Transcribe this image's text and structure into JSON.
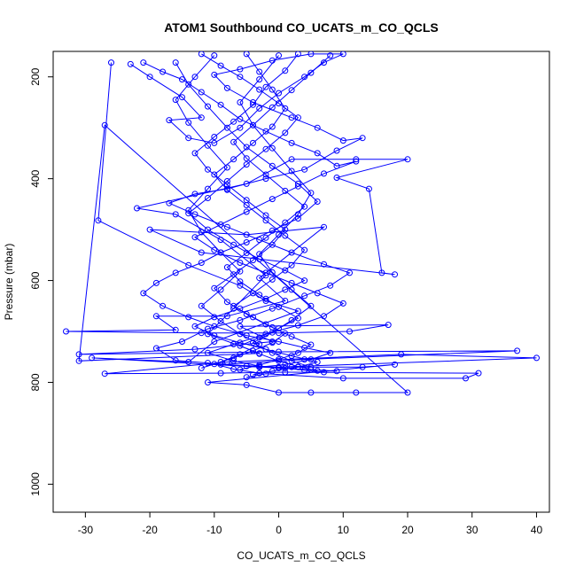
{
  "chart_data": {
    "type": "line",
    "title": "ATOM1 Southbound CO_UCATS_m_CO_QCLS",
    "xlabel": "CO_UCATS_m_CO_QCLS",
    "ylabel": "Pressure (mbar)",
    "xlim": [
      -35,
      42
    ],
    "ylim": [
      1055,
      150
    ],
    "y_reversed": true,
    "xticks": [
      -30,
      -20,
      -10,
      0,
      10,
      20,
      30,
      40
    ],
    "xtick_labels": [
      "-30",
      "-20",
      "-10",
      "0",
      "10",
      "20",
      "30",
      "40"
    ],
    "yticks": [
      200,
      400,
      600,
      800,
      1000
    ],
    "ytick_labels": [
      "200",
      "400",
      "600",
      "800",
      "1000"
    ],
    "grid": false,
    "legend": "none",
    "color": "#0000ff",
    "marker": "open-circle",
    "series": [
      {
        "points": [
          [
            -26,
            172
          ],
          [
            -28,
            482
          ],
          [
            -14,
            570
          ],
          [
            -6,
            610
          ],
          [
            -2,
            640
          ],
          [
            3,
            660
          ],
          [
            -10,
            720
          ],
          [
            -14,
            760
          ],
          [
            -29,
            752
          ],
          [
            -3,
            770
          ],
          [
            2,
            770
          ],
          [
            13,
            770
          ],
          [
            18,
            765
          ],
          [
            -11,
            800
          ],
          [
            -5,
            805
          ],
          [
            0,
            820
          ],
          [
            5,
            820
          ],
          [
            12,
            820
          ],
          [
            20,
            820
          ],
          [
            -27,
            295
          ],
          [
            -31,
            758
          ],
          [
            -3,
            743
          ],
          [
            -11,
            705
          ],
          [
            -7,
            655
          ],
          [
            -2,
            590
          ],
          [
            -9,
            520
          ],
          [
            -16,
            470
          ],
          [
            -22,
            458
          ],
          [
            -5,
            410
          ],
          [
            2,
            362
          ],
          [
            12,
            362
          ],
          [
            20,
            362
          ],
          [
            9,
            398
          ],
          [
            14,
            420
          ],
          [
            16,
            585
          ],
          [
            18,
            588
          ],
          [
            -12,
            545
          ],
          [
            -20,
            500
          ],
          [
            -5,
            510
          ],
          [
            7,
            495
          ],
          [
            -3,
            595
          ],
          [
            1,
            640
          ],
          [
            -8,
            670
          ],
          [
            -19,
            670
          ],
          [
            -16,
            697
          ],
          [
            -33,
            700
          ],
          [
            -12,
            703
          ],
          [
            0,
            703
          ],
          [
            11,
            700
          ],
          [
            17,
            687
          ],
          [
            -6,
            690
          ],
          [
            -1,
            720
          ],
          [
            -13,
            735
          ],
          [
            -31,
            745
          ],
          [
            0,
            740
          ],
          [
            37,
            738
          ],
          [
            4,
            755
          ],
          [
            -9,
            765
          ],
          [
            0,
            770
          ],
          [
            40,
            752
          ],
          [
            19,
            745
          ],
          [
            -8,
            760
          ],
          [
            -27,
            783
          ],
          [
            -9,
            782
          ],
          [
            1,
            780
          ],
          [
            31,
            782
          ],
          [
            29,
            792
          ],
          [
            10,
            792
          ],
          [
            -2,
            783
          ],
          [
            -5,
            790
          ]
        ]
      },
      {
        "points": [
          [
            -23,
            175
          ],
          [
            -20,
            200
          ],
          [
            -15,
            240
          ],
          [
            -12,
            280
          ],
          [
            -17,
            285
          ],
          [
            -14,
            320
          ],
          [
            -10,
            330
          ],
          [
            -6,
            300
          ],
          [
            -3,
            262
          ],
          [
            0,
            232
          ],
          [
            4,
            200
          ],
          [
            7,
            172
          ],
          [
            10,
            155
          ],
          [
            5,
            155
          ],
          [
            -1,
            168
          ],
          [
            -6,
            185
          ],
          [
            -10,
            196
          ],
          [
            -8,
            222
          ],
          [
            -4,
            250
          ],
          [
            2,
            280
          ],
          [
            6,
            300
          ],
          [
            10,
            325
          ],
          [
            13,
            320
          ],
          [
            9,
            345
          ],
          [
            4,
            382
          ],
          [
            -2,
            400
          ],
          [
            -8,
            420
          ],
          [
            -13,
            430
          ],
          [
            -17,
            448
          ],
          [
            -13,
            470
          ],
          [
            -8,
            495
          ],
          [
            -3,
            520
          ],
          [
            2,
            545
          ],
          [
            7,
            568
          ],
          [
            11,
            585
          ],
          [
            8,
            610
          ],
          [
            4,
            630
          ],
          [
            -1,
            655
          ],
          [
            -6,
            678
          ],
          [
            -11,
            695
          ],
          [
            -15,
            720
          ],
          [
            -19,
            733
          ],
          [
            -16,
            757
          ],
          [
            -11,
            762
          ],
          [
            -5,
            768
          ],
          [
            0,
            772
          ],
          [
            5,
            775
          ],
          [
            9,
            778
          ]
        ]
      },
      {
        "points": [
          [
            -21,
            172
          ],
          [
            -18,
            190
          ],
          [
            -15,
            205
          ],
          [
            -12,
            230
          ],
          [
            -9,
            255
          ],
          [
            -6,
            283
          ],
          [
            -2,
            307
          ],
          [
            2,
            330
          ],
          [
            6,
            350
          ],
          [
            9,
            375
          ],
          [
            12,
            366
          ],
          [
            7,
            390
          ],
          [
            3,
            415
          ],
          [
            -1,
            440
          ],
          [
            -5,
            465
          ],
          [
            -9,
            490
          ],
          [
            -13,
            515
          ],
          [
            -10,
            540
          ],
          [
            -6,
            565
          ],
          [
            -2,
            585
          ],
          [
            2,
            605
          ],
          [
            6,
            625
          ],
          [
            10,
            645
          ],
          [
            7,
            670
          ],
          [
            3,
            688
          ],
          [
            -2,
            705
          ],
          [
            -7,
            725
          ],
          [
            -11,
            742
          ],
          [
            -7,
            758
          ],
          [
            -3,
            768
          ],
          [
            1,
            772
          ],
          [
            4,
            776
          ],
          [
            7,
            780
          ]
        ]
      },
      {
        "points": [
          [
            -16,
            172
          ],
          [
            -14,
            215
          ],
          [
            -11,
            258
          ],
          [
            -8,
            300
          ],
          [
            -5,
            338
          ],
          [
            -1,
            375
          ],
          [
            3,
            410
          ],
          [
            6,
            445
          ],
          [
            3,
            478
          ],
          [
            -1,
            502
          ],
          [
            -5,
            525
          ],
          [
            -9,
            545
          ],
          [
            -12,
            565
          ],
          [
            -16,
            585
          ],
          [
            -19,
            605
          ],
          [
            -21,
            625
          ],
          [
            -18,
            650
          ],
          [
            -14,
            672
          ],
          [
            -10,
            690
          ],
          [
            -5,
            708
          ],
          [
            0,
            720
          ],
          [
            4,
            732
          ],
          [
            8,
            742
          ],
          [
            5,
            755
          ],
          [
            1,
            765
          ],
          [
            -3,
            770
          ]
        ]
      },
      {
        "points": [
          [
            -12,
            155
          ],
          [
            -9,
            178
          ],
          [
            -6,
            200
          ],
          [
            -3,
            225
          ],
          [
            0,
            252
          ],
          [
            3,
            280
          ],
          [
            1,
            310
          ],
          [
            -2,
            342
          ],
          [
            -5,
            372
          ],
          [
            -8,
            405
          ],
          [
            -11,
            438
          ],
          [
            -14,
            468
          ],
          [
            -11,
            500
          ],
          [
            -7,
            530
          ],
          [
            -3,
            558
          ],
          [
            1,
            580
          ],
          [
            4,
            600
          ],
          [
            1,
            618
          ],
          [
            -2,
            636
          ],
          [
            -6,
            655
          ],
          [
            -10,
            672
          ],
          [
            -13,
            690
          ],
          [
            -10,
            708
          ],
          [
            -6,
            722
          ],
          [
            -2,
            735
          ],
          [
            2,
            748
          ],
          [
            6,
            760
          ],
          [
            3,
            770
          ],
          [
            -1,
            778
          ],
          [
            -4,
            785
          ]
        ]
      },
      {
        "points": [
          [
            -5,
            155
          ],
          [
            -3,
            190
          ],
          [
            -1,
            225
          ],
          [
            1,
            262
          ],
          [
            -1,
            298
          ],
          [
            -4,
            330
          ],
          [
            -7,
            362
          ],
          [
            -10,
            392
          ],
          [
            -8,
            422
          ],
          [
            -5,
            452
          ],
          [
            -2,
            482
          ],
          [
            1,
            512
          ],
          [
            4,
            540
          ],
          [
            2,
            570
          ],
          [
            -1,
            598
          ],
          [
            -4,
            625
          ],
          [
            -7,
            650
          ],
          [
            -4,
            672
          ],
          [
            -1,
            692
          ],
          [
            2,
            710
          ],
          [
            5,
            726
          ],
          [
            3,
            742
          ],
          [
            0,
            755
          ],
          [
            -3,
            766
          ],
          [
            -6,
            775
          ]
        ]
      },
      {
        "points": [
          [
            3,
            155
          ],
          [
            1,
            188
          ],
          [
            -2,
            220
          ],
          [
            -4,
            255
          ],
          [
            -7,
            288
          ],
          [
            -10,
            318
          ],
          [
            -13,
            350
          ],
          [
            -11,
            382
          ],
          [
            -8,
            412
          ],
          [
            -5,
            442
          ],
          [
            -2,
            472
          ],
          [
            1,
            500
          ],
          [
            -1,
            530
          ],
          [
            -4,
            560
          ],
          [
            -7,
            588
          ],
          [
            -10,
            615
          ],
          [
            -8,
            642
          ],
          [
            -5,
            666
          ],
          [
            -2,
            686
          ],
          [
            1,
            704
          ],
          [
            -1,
            722
          ],
          [
            -4,
            738
          ],
          [
            -7,
            752
          ],
          [
            -10,
            764
          ],
          [
            -7,
            774
          ],
          [
            -3,
            782
          ]
        ]
      },
      {
        "points": [
          [
            8,
            158
          ],
          [
            5,
            192
          ],
          [
            2,
            226
          ],
          [
            -1,
            260
          ],
          [
            -4,
            295
          ],
          [
            -7,
            328
          ],
          [
            -5,
            360
          ],
          [
            -2,
            392
          ],
          [
            1,
            424
          ],
          [
            4,
            455
          ],
          [
            1,
            486
          ],
          [
            -2,
            516
          ],
          [
            -5,
            546
          ],
          [
            -8,
            574
          ],
          [
            -6,
            602
          ],
          [
            -3,
            628
          ],
          [
            0,
            652
          ],
          [
            3,
            674
          ],
          [
            0,
            694
          ],
          [
            -3,
            712
          ],
          [
            -6,
            728
          ],
          [
            -3,
            744
          ],
          [
            0,
            758
          ],
          [
            3,
            769
          ],
          [
            6,
            777
          ]
        ]
      },
      {
        "points": [
          [
            -10,
            158
          ],
          [
            -13,
            200
          ],
          [
            -16,
            245
          ],
          [
            -14,
            290
          ],
          [
            -11,
            335
          ],
          [
            -8,
            378
          ],
          [
            -11,
            420
          ],
          [
            -14,
            462
          ],
          [
            -12,
            505
          ],
          [
            -9,
            545
          ],
          [
            -6,
            582
          ],
          [
            -9,
            618
          ],
          [
            -12,
            650
          ],
          [
            -9,
            680
          ],
          [
            -6,
            705
          ],
          [
            -3,
            725
          ],
          [
            -6,
            745
          ],
          [
            -9,
            760
          ],
          [
            -12,
            772
          ]
        ]
      },
      {
        "points": [
          [
            0,
            158
          ],
          [
            -3,
            205
          ],
          [
            -6,
            250
          ],
          [
            -4,
            295
          ],
          [
            -1,
            340
          ],
          [
            2,
            385
          ],
          [
            5,
            428
          ],
          [
            3,
            470
          ],
          [
            0,
            510
          ],
          [
            -3,
            548
          ],
          [
            -1,
            584
          ],
          [
            2,
            618
          ],
          [
            5,
            650
          ],
          [
            2,
            678
          ],
          [
            -1,
            702
          ],
          [
            -4,
            722
          ],
          [
            -1,
            742
          ],
          [
            2,
            758
          ],
          [
            5,
            770
          ]
        ]
      }
    ]
  }
}
